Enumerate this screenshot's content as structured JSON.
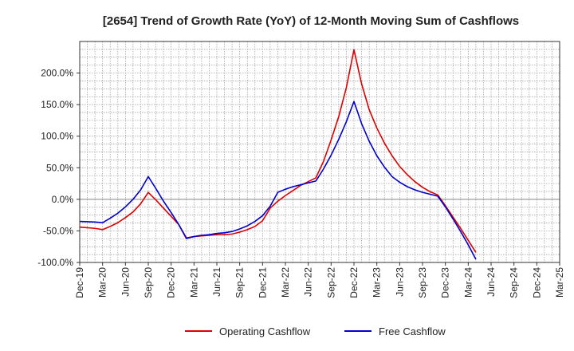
{
  "chart_data": {
    "type": "line",
    "title": "[2654]  Trend of Growth Rate (YoY) of 12-Month Moving Sum of Cashflows",
    "xlabel": "",
    "ylabel": "",
    "ylim": [
      -100,
      250
    ],
    "yticks": [
      -100,
      -50,
      0,
      50,
      100,
      150,
      200
    ],
    "ytick_labels": [
      "-100.0%",
      "-50.0%",
      "0.0%",
      "50.0%",
      "100.0%",
      "150.0%",
      "200.0%"
    ],
    "x_tick_labels": [
      "Dec-19",
      "Mar-20",
      "Jun-20",
      "Sep-20",
      "Dec-20",
      "Mar-21",
      "Jun-21",
      "Sep-21",
      "Dec-21",
      "Mar-22",
      "Jun-22",
      "Sep-22",
      "Dec-22",
      "Mar-23",
      "Jun-23",
      "Sep-23",
      "Dec-23",
      "Mar-24",
      "Jun-24",
      "Sep-24",
      "Dec-24",
      "Mar-25"
    ],
    "grid": true,
    "legend_position": "bottom",
    "series": [
      {
        "name": "Operating Cashflow",
        "color": "#dd0000",
        "values": [
          -44,
          -45,
          -46,
          -48,
          -43,
          -37,
          -29,
          -20,
          -7,
          11,
          -1,
          -14,
          -27,
          -40,
          -61,
          -59,
          -58,
          -57,
          -56,
          -56,
          -55,
          -52,
          -48,
          -43,
          -34,
          -14,
          -3,
          6,
          14,
          22,
          28,
          34,
          60,
          94,
          131,
          177,
          237,
          183,
          142,
          113,
          89,
          69,
          52,
          39,
          28,
          19,
          12,
          7,
          -10,
          -28,
          -46,
          -65,
          -84
        ]
      },
      {
        "name": "Free Cashflow",
        "color": "#0000cc",
        "values": [
          -35,
          -35.5,
          -36,
          -37,
          -30,
          -22,
          -12,
          0,
          15,
          36,
          17,
          -3,
          -21,
          -40,
          -62,
          -59,
          -57,
          -56,
          -54,
          -53,
          -51,
          -47,
          -42,
          -35,
          -26,
          -11,
          11,
          16,
          20,
          23,
          26,
          29,
          48,
          70,
          95,
          123,
          155,
          120,
          92,
          69,
          51,
          36,
          27,
          20,
          15,
          11,
          8,
          5,
          -12,
          -31,
          -51,
          -72,
          -95
        ]
      }
    ]
  }
}
